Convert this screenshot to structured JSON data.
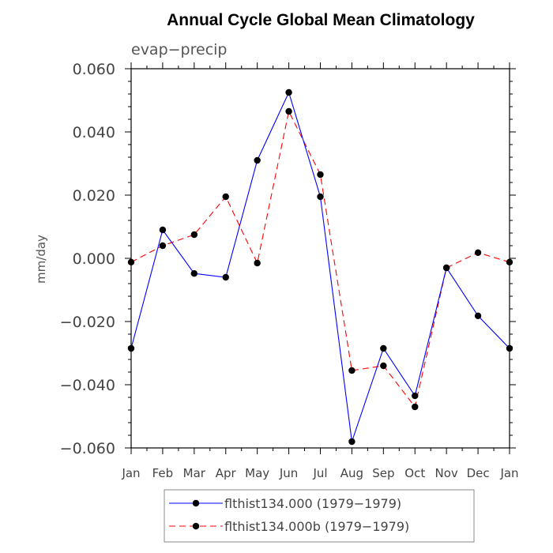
{
  "chart_data": {
    "type": "line",
    "title": "Annual Cycle Global Mean Climatology",
    "subtitle": "evap−precip",
    "xlabel": "",
    "ylabel": "mm/day",
    "categories": [
      "Jan",
      "Feb",
      "Mar",
      "Apr",
      "May",
      "Jun",
      "Jul",
      "Aug",
      "Sep",
      "Oct",
      "Nov",
      "Dec",
      "Jan"
    ],
    "ylim": [
      -0.06,
      0.06
    ],
    "yticks": [
      -0.06,
      -0.04,
      -0.02,
      0.0,
      0.02,
      0.04,
      0.06
    ],
    "ytick_labels": [
      "−0.060",
      "−0.040",
      "−0.020",
      "0.000",
      "0.020",
      "0.040",
      "0.060"
    ],
    "series": [
      {
        "name": "flthist134.000 (1979−1979)",
        "color": "#0000ff",
        "dashed": false,
        "values": [
          -0.0285,
          0.009,
          -0.0048,
          -0.006,
          0.031,
          0.0525,
          0.0195,
          -0.058,
          -0.0285,
          -0.0435,
          -0.003,
          -0.0182,
          -0.0285
        ]
      },
      {
        "name": "flthist134.000b (1979−1979)",
        "color": "#ff0000",
        "dashed": true,
        "values": [
          -0.0012,
          0.004,
          0.0075,
          0.0195,
          -0.0015,
          0.0465,
          0.0265,
          -0.0355,
          -0.034,
          -0.047,
          -0.003,
          0.0018,
          -0.0012
        ]
      }
    ],
    "grid": false,
    "legend_position": "bottom"
  }
}
